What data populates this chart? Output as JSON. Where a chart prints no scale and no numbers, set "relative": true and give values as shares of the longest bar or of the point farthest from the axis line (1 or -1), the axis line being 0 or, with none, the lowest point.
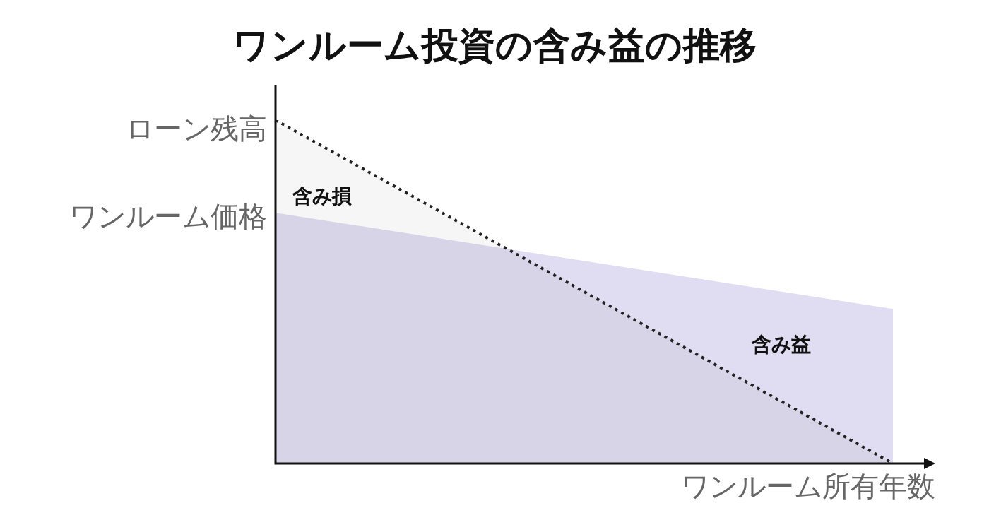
{
  "chart_data": {
    "type": "area",
    "title": "ワンルーム投資の含み益の推移",
    "xlabel": "ワンルーム所有年数",
    "relative": true,
    "categories": [
      null,
      null
    ],
    "series": [
      {
        "color": "#e0dcf1",
        "values": [
          0.73,
          0.45
        ]
      },
      {
        "type": "line",
        "color": "#222222",
        "values": [
          1,
          0
        ]
      }
    ],
    "line_style": "dotted",
    "legend": false,
    "annotations": [
      "ローン残高",
      "ワンルーム価格",
      "含み損",
      "含み益"
    ]
  }
}
